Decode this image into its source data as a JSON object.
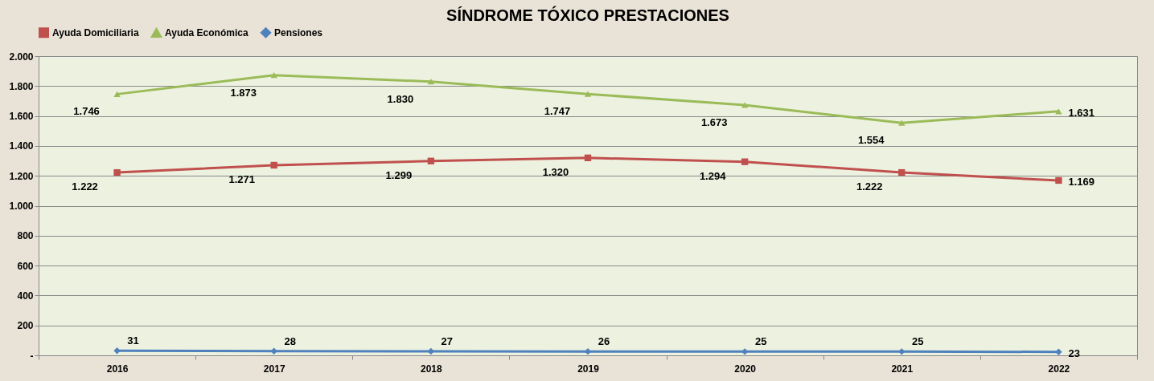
{
  "chart_data": {
    "type": "line",
    "title": "SÍNDROME TÓXICO PRESTACIONES",
    "categories": [
      "2016",
      "2017",
      "2018",
      "2019",
      "2020",
      "2021",
      "2022"
    ],
    "series": [
      {
        "name": "Ayuda Domiciliaria",
        "color": "#c0504d",
        "marker": "square",
        "values": [
          1222,
          1271,
          1299,
          1320,
          1294,
          1222,
          1169
        ],
        "value_labels": [
          "1.222",
          "1.271",
          "1.299",
          "1.320",
          "1.294",
          "1.222",
          "1.169"
        ]
      },
      {
        "name": "Ayuda Económica",
        "color": "#9bbb59",
        "marker": "triangle",
        "values": [
          1746,
          1873,
          1830,
          1747,
          1673,
          1554,
          1631
        ],
        "value_labels": [
          "1.746",
          "1.873",
          "1.830",
          "1.747",
          "1.673",
          "1.554",
          "1.631"
        ]
      },
      {
        "name": "Pensiones",
        "color": "#4f81bd",
        "marker": "diamond",
        "values": [
          31,
          28,
          27,
          26,
          25,
          25,
          23
        ],
        "value_labels": [
          "31",
          "28",
          "27",
          "26",
          "25",
          "25",
          "23"
        ]
      }
    ],
    "ylim": [
      0,
      2000
    ],
    "yticks": [
      {
        "value": 0,
        "label": "-"
      },
      200,
      400,
      600,
      800,
      {
        "value": 1000,
        "label": "1.000"
      },
      {
        "value": 1200,
        "label": "1.200"
      },
      {
        "value": 1400,
        "label": "1.400"
      },
      {
        "value": 1600,
        "label": "1.600"
      },
      {
        "value": 1800,
        "label": "1.800"
      },
      {
        "value": 2000,
        "label": "2.000"
      }
    ],
    "grid": "y",
    "legend": "top",
    "line_style": "solid"
  }
}
